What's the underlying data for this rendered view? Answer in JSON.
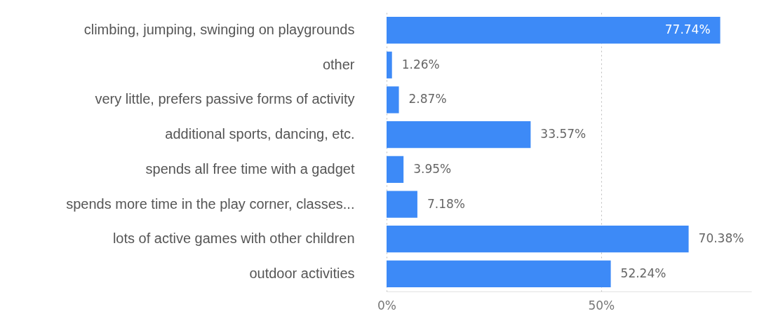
{
  "chart_data": {
    "type": "bar",
    "orientation": "horizontal",
    "categories": [
      "climbing, jumping, swinging on playgrounds",
      "other",
      "very little, prefers passive forms of activity",
      "additional sports, dancing, etc.",
      "spends all free time with a gadget",
      "spends more time in the play corner, classes...",
      "lots of active games with other children",
      "outdoor activities"
    ],
    "values": [
      77.74,
      1.26,
      2.87,
      33.57,
      3.95,
      7.18,
      70.38,
      52.24
    ],
    "value_labels": [
      "77.74%",
      "1.26%",
      "2.87%",
      "33.57%",
      "3.95%",
      "7.18%",
      "70.38%",
      "52.24%"
    ],
    "color": "#3d8af7",
    "xlim": [
      0,
      85
    ],
    "xticks": [
      {
        "value": 0,
        "label": "0%"
      },
      {
        "value": 50,
        "label": "50%"
      }
    ],
    "grid": "x"
  }
}
